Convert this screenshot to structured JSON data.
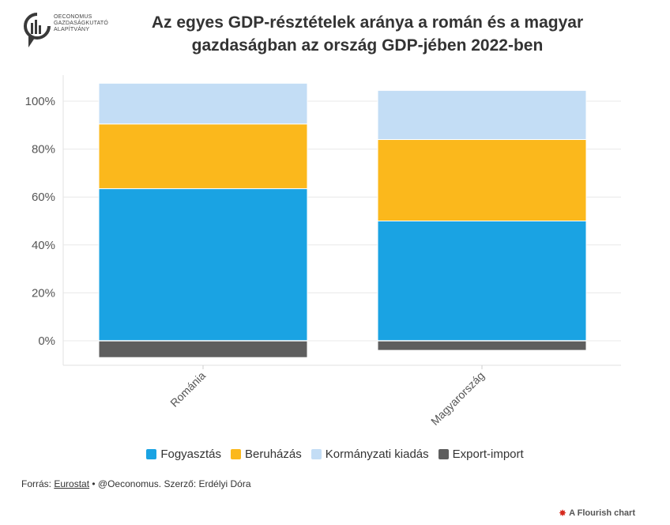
{
  "logo": {
    "line1": "OECONOMUS",
    "line2": "GAZDASÁGKUTATÓ",
    "line3": "ALAPÍTVÁNY"
  },
  "title_line1": "Az egyes GDP-résztételek aránya a román és a magyar",
  "title_line2": "gazdaságban az ország GDP-jében 2022-ben",
  "chart_data": {
    "type": "bar",
    "stacked": true,
    "categories": [
      "Románia",
      "Magyarország"
    ],
    "series": [
      {
        "name": "Fogyasztás",
        "color": "#1aa3e3",
        "values": [
          63.5,
          50
        ]
      },
      {
        "name": "Beruházás",
        "color": "#fbb81c",
        "values": [
          27,
          34
        ]
      },
      {
        "name": "Kormányzati kiadás",
        "color": "#c3ddf5",
        "values": [
          17,
          20.5
        ]
      },
      {
        "name": "Export-import",
        "color": "#5e5e5e",
        "values": [
          -7,
          -4
        ]
      }
    ],
    "y_ticks": [
      "0%",
      "20%",
      "40%",
      "60%",
      "80%",
      "100%"
    ],
    "y_tick_values": [
      0,
      20,
      40,
      60,
      80,
      100
    ],
    "ylim": [
      -10,
      110
    ],
    "grid": true,
    "legend_position": "bottom"
  },
  "footer": {
    "prefix": "Forrás: ",
    "source_link": "Eurostat",
    "suffix": " • @Oeconomus. Szerző: Erdélyi Dóra"
  },
  "flourish_label": "A Flourish chart"
}
